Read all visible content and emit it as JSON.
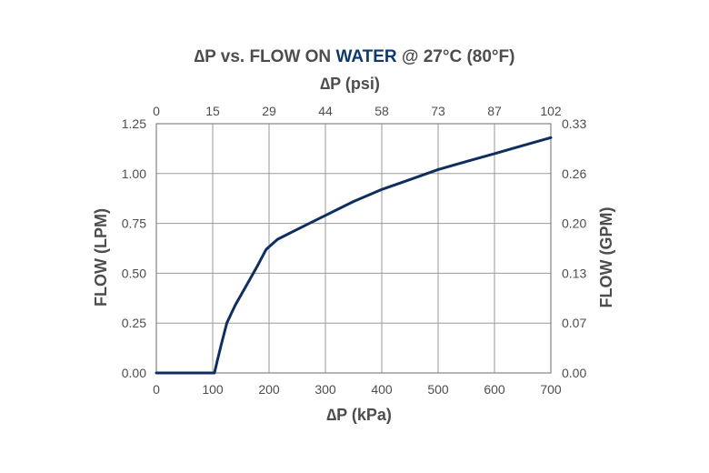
{
  "chart_data": {
    "type": "line",
    "title_parts": [
      "∆P vs. FLOW ON ",
      "WATER",
      " @ 27°C (80°F)"
    ],
    "title_highlight_color": "#0e3a6b",
    "line_color": "#0e2f5e",
    "grid": true,
    "xlabel": "∆P (kPa)",
    "x2label": "∆P (psi)",
    "ylabel": "FLOW (LPM)",
    "y2label": "FLOW (GPM)",
    "xlim": [
      0,
      700
    ],
    "ylim": [
      0,
      1.25
    ],
    "x_ticks": [
      "0",
      "100",
      "200",
      "300",
      "400",
      "500",
      "600",
      "700"
    ],
    "x2_ticks": [
      "0",
      "15",
      "29",
      "44",
      "58",
      "73",
      "87",
      "102"
    ],
    "y_ticks": [
      "0.00",
      "0.25",
      "0.50",
      "0.75",
      "1.00",
      "1.25"
    ],
    "y2_ticks": [
      "0.00",
      "0.07",
      "0.13",
      "0.20",
      "0.26",
      "0.33"
    ],
    "series": [
      {
        "x": [
          0,
          103,
          108,
          115,
          125,
          140,
          160,
          180,
          195,
          215,
          250,
          300,
          350,
          400,
          450,
          500,
          550,
          600,
          650,
          700
        ],
        "y": [
          0,
          0,
          0.06,
          0.14,
          0.25,
          0.34,
          0.44,
          0.54,
          0.62,
          0.67,
          0.72,
          0.79,
          0.86,
          0.92,
          0.97,
          1.02,
          1.06,
          1.1,
          1.14,
          1.18
        ]
      }
    ]
  }
}
